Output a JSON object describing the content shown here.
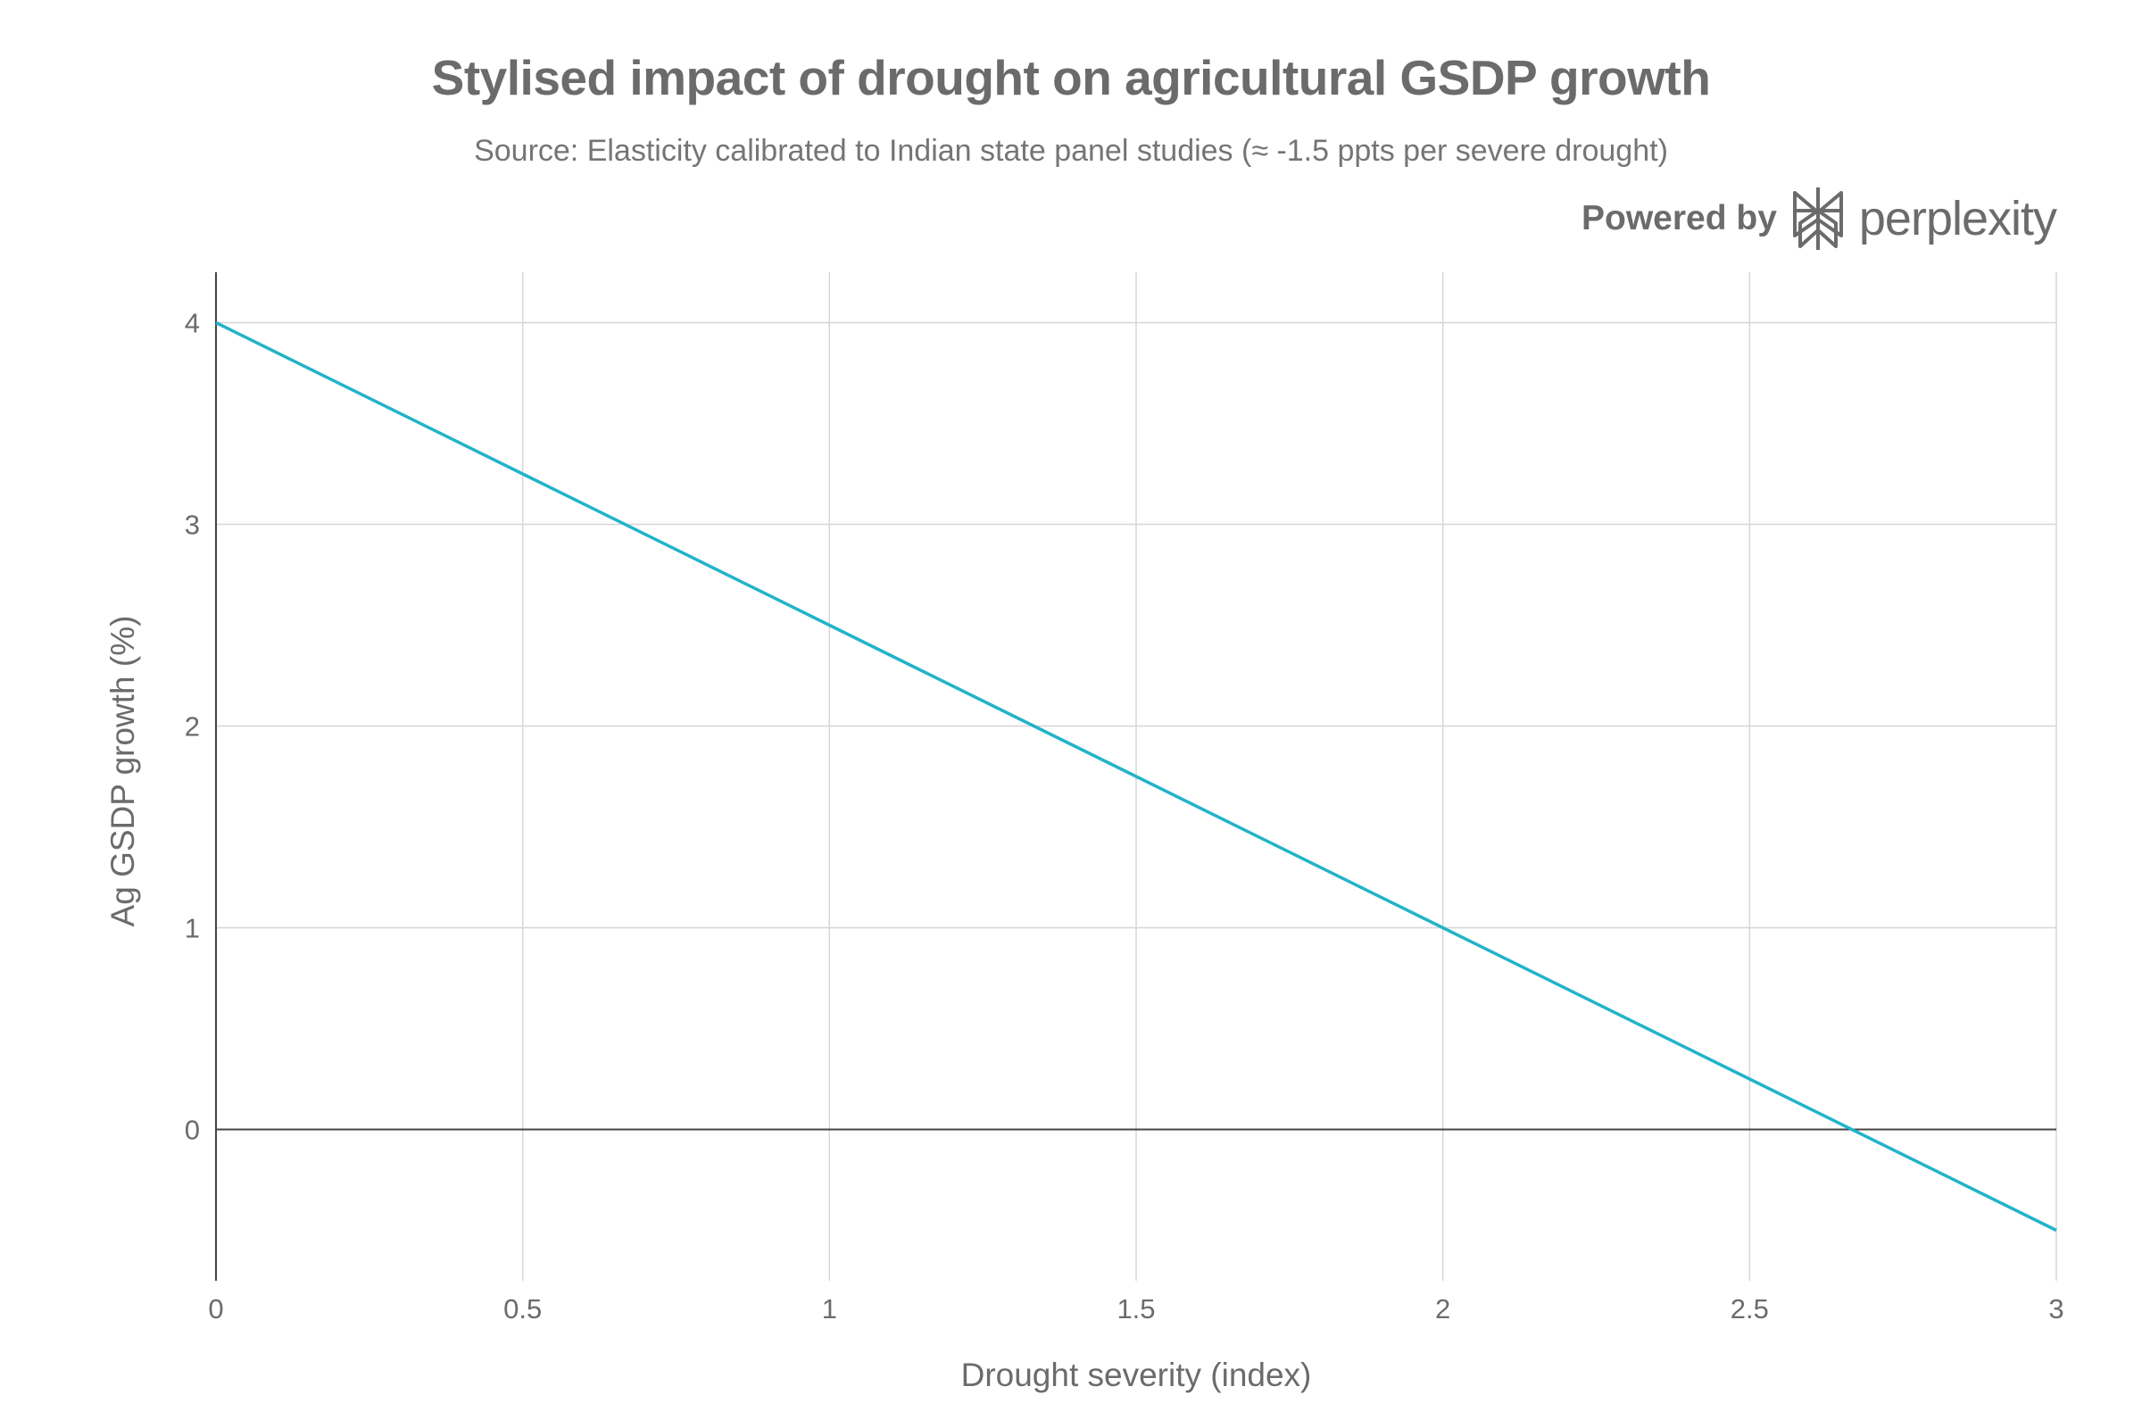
{
  "header": {
    "title": "Stylised impact of drought on agricultural GSDP growth",
    "subtitle": "Source: Elasticity calibrated to Indian state panel studies (≈ -1.5 ppts per severe drought)"
  },
  "branding": {
    "powered_by": "Powered by",
    "wordmark": "perplexity",
    "icon": "perplexity-logo-icon"
  },
  "colors": {
    "line": "#22b3c9",
    "grid": "#d6d6d6",
    "zero_line": "#444444",
    "text": "#6b6b6b"
  },
  "chart_data": {
    "type": "line",
    "title": "Stylised impact of drought on agricultural GSDP growth",
    "subtitle": "Source: Elasticity calibrated to Indian state panel studies (≈ -1.5 ppts per severe drought)",
    "xlabel": "Drought severity (index)",
    "ylabel": "Ag GSDP growth (%)",
    "xlim": [
      0,
      3
    ],
    "ylim": [
      -0.75,
      4.25
    ],
    "xticks": [
      0,
      0.5,
      1,
      1.5,
      2,
      2.5,
      3
    ],
    "xtick_labels": [
      "0",
      "0.5",
      "1",
      "1.5",
      "2",
      "2.5",
      "3"
    ],
    "yticks": [
      0,
      1,
      2,
      3,
      4
    ],
    "ytick_labels": [
      "0",
      "1",
      "2",
      "3",
      "4"
    ],
    "grid": true,
    "legend": "none",
    "series": [
      {
        "x": [
          0,
          0.5,
          1,
          1.5,
          2,
          2.5,
          3
        ],
        "y": [
          4,
          3.25,
          2.5,
          1.75,
          1,
          0.25,
          -0.5
        ]
      }
    ]
  }
}
